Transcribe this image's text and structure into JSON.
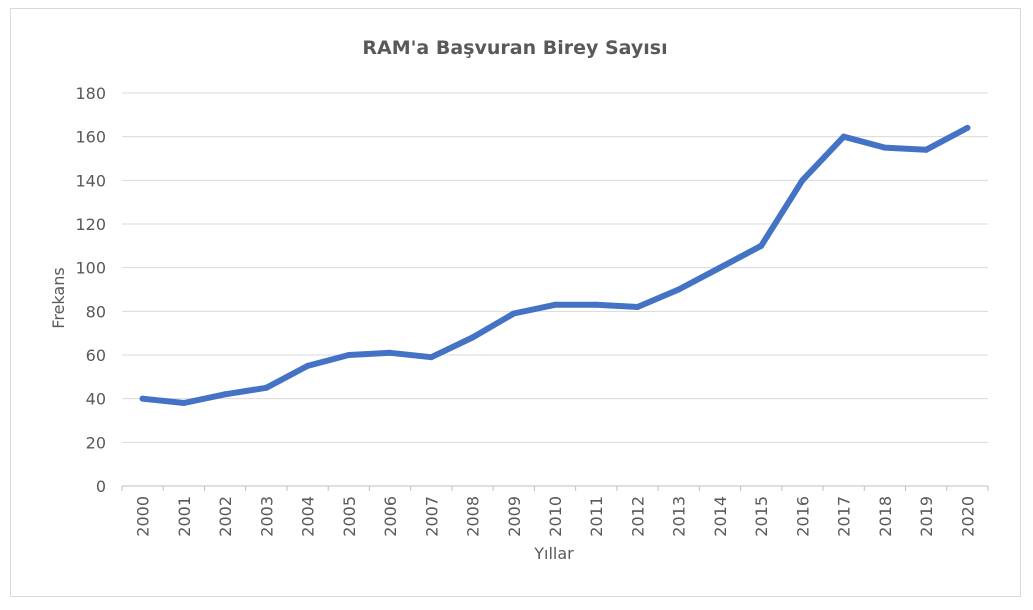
{
  "chart_data": {
    "type": "line",
    "title": "RAM'a Başvuran Birey Sayısı",
    "xlabel": "Yıllar",
    "ylabel": "Frekans",
    "ylim": [
      0,
      180
    ],
    "yticks": [
      "0",
      "20",
      "40",
      "60",
      "80",
      "100",
      "120",
      "140",
      "160",
      "180"
    ],
    "categories": [
      "2000",
      "2001",
      "2002",
      "2003",
      "2004",
      "2005",
      "2006",
      "2007",
      "2008",
      "2009",
      "2010",
      "2011",
      "2012",
      "2013",
      "2014",
      "2015",
      "2016",
      "2017",
      "2018",
      "2019",
      "2020"
    ],
    "series": [
      {
        "values": [
          40,
          38,
          42,
          45,
          55,
          60,
          61,
          59,
          68,
          79,
          83,
          83,
          82,
          90,
          100,
          110,
          140,
          160,
          155,
          154,
          164
        ]
      }
    ],
    "grid": true,
    "legend": "none",
    "colors": {
      "line": "#4472c4",
      "grid": "#d9d9d9",
      "text": "#595959",
      "axis": "#bfbfbf"
    }
  }
}
